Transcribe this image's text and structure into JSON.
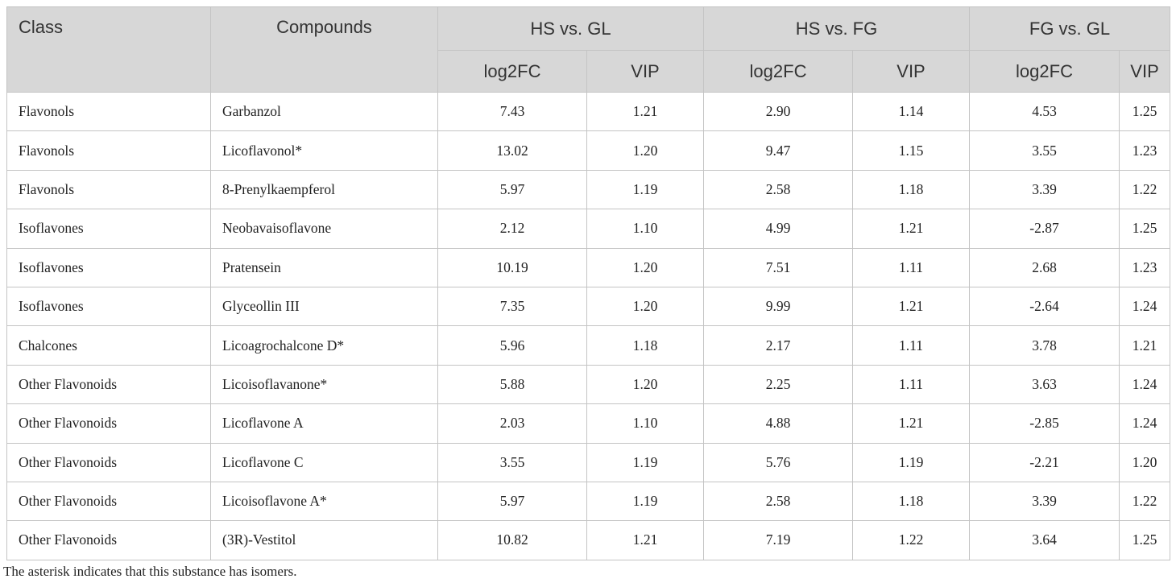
{
  "table": {
    "header": [
      "Class",
      "Compounds",
      "HS vs. GL",
      "HS vs. FG",
      "FG vs. GL"
    ],
    "subheader": [
      "log2FC",
      "VIP",
      "log2FC",
      "VIP",
      "log2FC",
      "VIP"
    ],
    "rows": [
      [
        "Flavonols",
        "Garbanzol",
        "7.43",
        "1.21",
        "2.90",
        "1.14",
        "4.53",
        "1.25"
      ],
      [
        "Flavonols",
        "Licoflavonol*",
        "13.02",
        "1.20",
        "9.47",
        "1.15",
        "3.55",
        "1.23"
      ],
      [
        "Flavonols",
        "8-Prenylkaempferol",
        "5.97",
        "1.19",
        "2.58",
        "1.18",
        "3.39",
        "1.22"
      ],
      [
        "Isoflavones",
        "Neobavaisoflavone",
        "2.12",
        "1.10",
        "4.99",
        "1.21",
        "-2.87",
        "1.25"
      ],
      [
        "Isoflavones",
        "Pratensein",
        "10.19",
        "1.20",
        "7.51",
        "1.11",
        "2.68",
        "1.23"
      ],
      [
        "Isoflavones",
        "Glyceollin III",
        "7.35",
        "1.20",
        "9.99",
        "1.21",
        "-2.64",
        "1.24"
      ],
      [
        "Chalcones",
        "Licoagrochalcone D*",
        "5.96",
        "1.18",
        "2.17",
        "1.11",
        "3.78",
        "1.21"
      ],
      [
        "Other Flavonoids",
        "Licoisoflavanone*",
        "5.88",
        "1.20",
        "2.25",
        "1.11",
        "3.63",
        "1.24"
      ],
      [
        "Other Flavonoids",
        "Licoflavone A",
        "2.03",
        "1.10",
        "4.88",
        "1.21",
        "-2.85",
        "1.24"
      ],
      [
        "Other Flavonoids",
        "Licoflavone C",
        "3.55",
        "1.19",
        "5.76",
        "1.19",
        "-2.21",
        "1.20"
      ],
      [
        "Other Flavonoids",
        "Licoisoflavone A*",
        "5.97",
        "1.19",
        "2.58",
        "1.18",
        "3.39",
        "1.22"
      ],
      [
        "Other Flavonoids",
        "(3R)-Vestitol",
        "10.82",
        "1.21",
        "7.19",
        "1.22",
        "3.64",
        "1.25"
      ]
    ],
    "footnote": "The asterisk indicates that this substance has isomers."
  }
}
